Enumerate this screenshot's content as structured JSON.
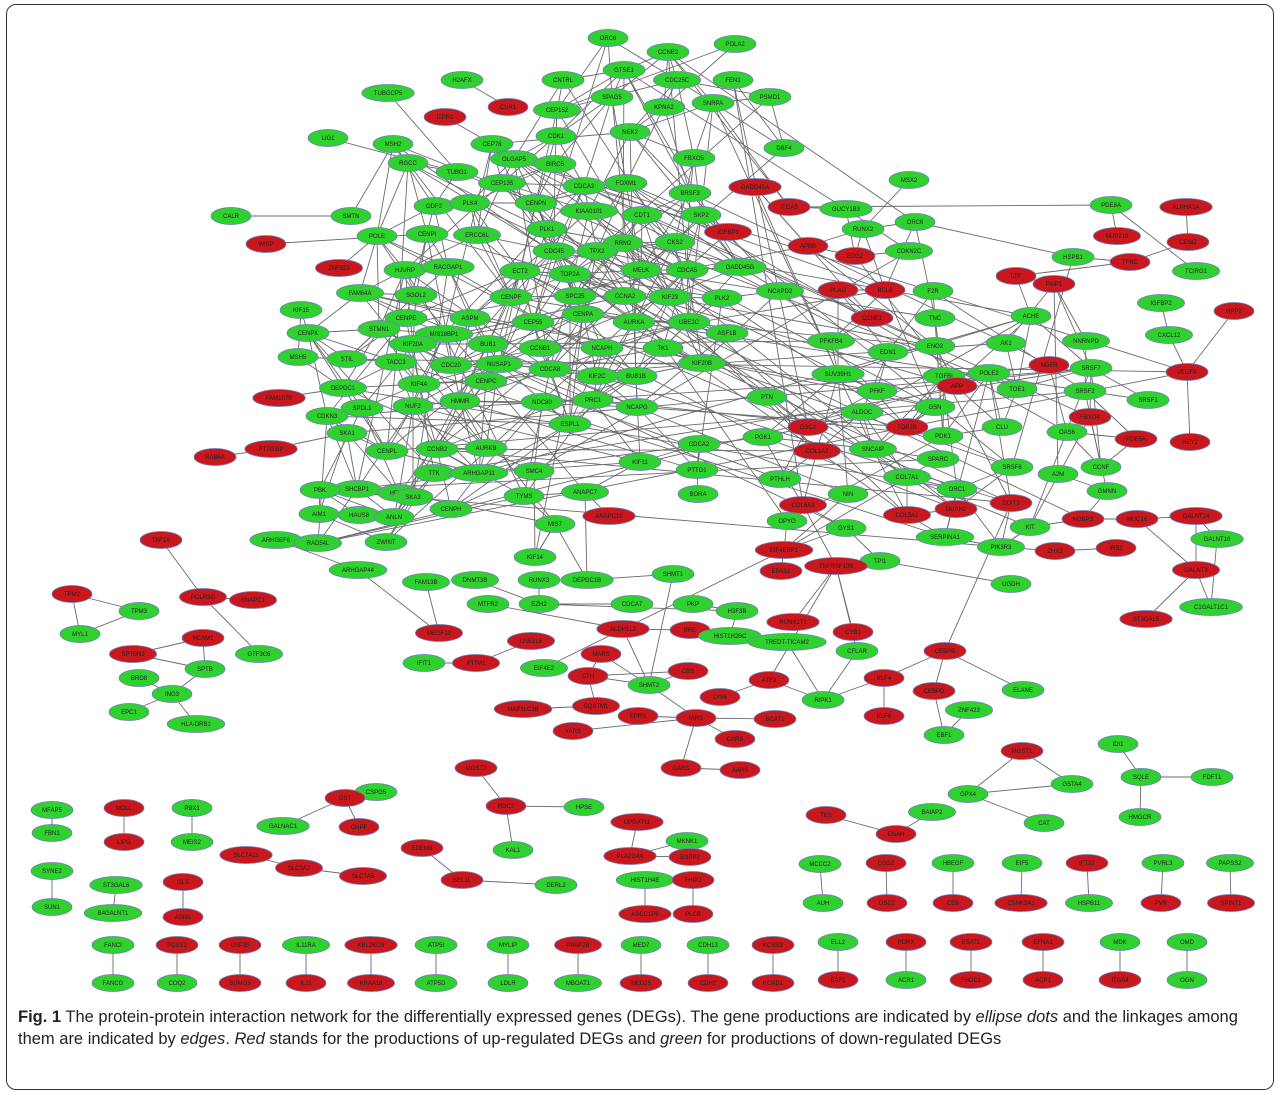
{
  "colors": {
    "up": "#c8181e",
    "down": "#2fd12f",
    "edge": "#6b6b6b"
  },
  "caption": {
    "label": "Fig. 1",
    "part1": "The protein-protein interaction network for the differentially expressed genes (DEGs). The gene productions are indicated by ",
    "em1": "ellipse dots",
    "part2": " and the linkages among them are indicated by ",
    "em2": "edges",
    "part3": ". ",
    "em3": "Red",
    "part4": " stands for the productions of up-regulated DEGs and ",
    "em4": "green",
    "part5": " for productions of down-regulated DEGs"
  },
  "nodes": [
    {
      "id": "ORC6",
      "c": "g"
    },
    {
      "id": "CCNE2",
      "c": "g"
    },
    {
      "id": "POLA2",
      "c": "g"
    },
    {
      "id": "H2AFX",
      "c": "g"
    },
    {
      "id": "CNTRL",
      "c": "g"
    },
    {
      "id": "GTSE1",
      "c": "g"
    },
    {
      "id": "CDC25C",
      "c": "g"
    },
    {
      "id": "FEN1",
      "c": "g"
    },
    {
      "id": "TUBGCP5",
      "c": "g"
    },
    {
      "id": "CUR1",
      "c": "r"
    },
    {
      "id": "SPAG5",
      "c": "g"
    },
    {
      "id": "CEP152",
      "c": "g"
    },
    {
      "id": "KPNA2",
      "c": "g"
    },
    {
      "id": "SNRPA",
      "c": "g"
    },
    {
      "id": "PSMD1",
      "c": "g"
    },
    {
      "id": "ITPR1",
      "c": "r"
    },
    {
      "id": "CDK1",
      "c": "g"
    },
    {
      "id": "NEK2",
      "c": "g"
    },
    {
      "id": "LIG1",
      "c": "g"
    },
    {
      "id": "MSH2",
      "c": "g"
    },
    {
      "id": "RGCC",
      "c": "g"
    },
    {
      "id": "CEP78",
      "c": "g"
    },
    {
      "id": "OLGAP5",
      "c": "g"
    },
    {
      "id": "BIRC5",
      "c": "g"
    },
    {
      "id": "FBXO5",
      "c": "g"
    },
    {
      "id": "DBF4",
      "c": "g"
    },
    {
      "id": "TUBG1",
      "c": "g"
    },
    {
      "id": "CEP135",
      "c": "g"
    },
    {
      "id": "CDCA3",
      "c": "g"
    },
    {
      "id": "FOXM1",
      "c": "g"
    },
    {
      "id": "MSX2",
      "c": "g"
    },
    {
      "id": "CALR",
      "c": "g"
    },
    {
      "id": "SMTN",
      "c": "g"
    },
    {
      "id": "ODF2",
      "c": "g"
    },
    {
      "id": "PLK4",
      "c": "g"
    },
    {
      "id": "CENPN",
      "c": "g"
    },
    {
      "id": "KIAA0101",
      "c": "g"
    },
    {
      "id": "BRSF3",
      "c": "g"
    },
    {
      "id": "GADD45A",
      "c": "r"
    },
    {
      "id": "CDT1",
      "c": "g"
    },
    {
      "id": "SKP2",
      "c": "g"
    },
    {
      "id": "ITGA5",
      "c": "r"
    },
    {
      "id": "GUCY1B3",
      "c": "g"
    },
    {
      "id": "PDE8A",
      "c": "g"
    },
    {
      "id": "ALPHA1A",
      "c": "r"
    },
    {
      "id": "WISP",
      "c": "r"
    },
    {
      "id": "POLE",
      "c": "g"
    },
    {
      "id": "CENPI",
      "c": "g"
    },
    {
      "id": "ERCC6L",
      "c": "g"
    },
    {
      "id": "PLK1",
      "c": "g"
    },
    {
      "id": "RRM2",
      "c": "g"
    },
    {
      "id": "CKS2",
      "c": "g"
    },
    {
      "id": "IGFBP3",
      "c": "r"
    },
    {
      "id": "RUNX2",
      "c": "g"
    },
    {
      "id": "ORC6b",
      "c": "g"
    },
    {
      "id": "NUP210",
      "c": "r"
    },
    {
      "id": "CENIZ",
      "c": "r"
    },
    {
      "id": "ZNF823",
      "c": "r"
    },
    {
      "id": "CDC45",
      "c": "g"
    },
    {
      "id": "TPX2",
      "c": "g"
    },
    {
      "id": "APBB",
      "c": "r"
    },
    {
      "id": "EDG2",
      "c": "r"
    },
    {
      "id": "CDKN2C",
      "c": "g"
    },
    {
      "id": "HSPB1",
      "c": "g"
    },
    {
      "id": "TFRC",
      "c": "r"
    },
    {
      "id": "TCIRG1",
      "c": "g"
    },
    {
      "id": "HJURP",
      "c": "g"
    },
    {
      "id": "RACGAP1",
      "c": "g"
    },
    {
      "id": "ECT2",
      "c": "g"
    },
    {
      "id": "TOP2A",
      "c": "g"
    },
    {
      "id": "MELK",
      "c": "g"
    },
    {
      "id": "CDCA5",
      "c": "g"
    },
    {
      "id": "GADD45G",
      "c": "g"
    },
    {
      "id": "PLAU",
      "c": "r"
    },
    {
      "id": "BCL6",
      "c": "r"
    },
    {
      "id": "F2R",
      "c": "g"
    },
    {
      "id": "LTF",
      "c": "r"
    },
    {
      "id": "PAIP1",
      "c": "r"
    },
    {
      "id": "FAM64A",
      "c": "g"
    },
    {
      "id": "SGOL2",
      "c": "g"
    },
    {
      "id": "CENPF",
      "c": "g"
    },
    {
      "id": "SPC25",
      "c": "g"
    },
    {
      "id": "CCNA2",
      "c": "g"
    },
    {
      "id": "KIF23",
      "c": "g"
    },
    {
      "id": "PLK2",
      "c": "g"
    },
    {
      "id": "NCAPD2",
      "c": "g"
    },
    {
      "id": "CCNE1",
      "c": "r"
    },
    {
      "id": "TNC",
      "c": "g"
    },
    {
      "id": "ACHE",
      "c": "g"
    },
    {
      "id": "IGFBP2",
      "c": "g"
    },
    {
      "id": "HPP2",
      "c": "r"
    },
    {
      "id": "KIF15",
      "c": "g"
    },
    {
      "id": "CENPE",
      "c": "g"
    },
    {
      "id": "ASPM",
      "c": "g"
    },
    {
      "id": "CENPA",
      "c": "g"
    },
    {
      "id": "AURKA",
      "c": "g"
    },
    {
      "id": "UBE2C",
      "c": "g"
    },
    {
      "id": "ASF1B",
      "c": "g"
    },
    {
      "id": "CENPK",
      "c": "g"
    },
    {
      "id": "STMN1",
      "c": "g"
    },
    {
      "id": "MIS18BP1",
      "c": "g"
    },
    {
      "id": "CEP55",
      "c": "g"
    },
    {
      "id": "PFKFB4",
      "c": "g"
    },
    {
      "id": "CXCL12",
      "c": "g"
    },
    {
      "id": "MSH5",
      "c": "g"
    },
    {
      "id": "KIF20A",
      "c": "g"
    },
    {
      "id": "BUB1",
      "c": "g"
    },
    {
      "id": "CCNB1",
      "c": "g"
    },
    {
      "id": "NCAPH",
      "c": "g"
    },
    {
      "id": "TK1",
      "c": "g"
    },
    {
      "id": "KIF20B",
      "c": "g"
    },
    {
      "id": "EDN1",
      "c": "g"
    },
    {
      "id": "ENO2",
      "c": "g"
    },
    {
      "id": "AK1",
      "c": "g"
    },
    {
      "id": "NNRNPD",
      "c": "g"
    },
    {
      "id": "STIL",
      "c": "g"
    },
    {
      "id": "TACC3",
      "c": "g"
    },
    {
      "id": "CDC20",
      "c": "g"
    },
    {
      "id": "NUSAP1",
      "c": "g"
    },
    {
      "id": "SUV39H1",
      "c": "g"
    },
    {
      "id": "TGFBI",
      "c": "g"
    },
    {
      "id": "POLE2",
      "c": "g"
    },
    {
      "id": "NGFR",
      "c": "r"
    },
    {
      "id": "SRSF7",
      "c": "g"
    },
    {
      "id": "VEGFA",
      "c": "r"
    },
    {
      "id": "DEPDC1",
      "c": "g"
    },
    {
      "id": "CDCA8",
      "c": "g"
    },
    {
      "id": "BUB1B",
      "c": "g"
    },
    {
      "id": "PFKF",
      "c": "g"
    },
    {
      "id": "APP",
      "c": "r"
    },
    {
      "id": "TOE1",
      "c": "g"
    },
    {
      "id": "SRSF2",
      "c": "g"
    },
    {
      "id": "FAM107B",
      "c": "r"
    },
    {
      "id": "KIF4A",
      "c": "g"
    },
    {
      "id": "CENPC",
      "c": "g"
    },
    {
      "id": "PTN",
      "c": "g"
    },
    {
      "id": "ALDOC",
      "c": "g"
    },
    {
      "id": "GSN",
      "c": "g"
    },
    {
      "id": "FBXO4",
      "c": "r"
    },
    {
      "id": "SRSF1",
      "c": "g"
    },
    {
      "id": "SPDL1",
      "c": "g"
    },
    {
      "id": "NUF2",
      "c": "g"
    },
    {
      "id": "HMMR",
      "c": "g"
    },
    {
      "id": "NDC80",
      "c": "g"
    },
    {
      "id": "PRC1",
      "c": "g"
    },
    {
      "id": "NCAPG",
      "c": "g"
    },
    {
      "id": "TOP2B",
      "c": "r"
    },
    {
      "id": "CDKN3",
      "c": "g"
    },
    {
      "id": "KIF2C",
      "c": "g"
    },
    {
      "id": "ESPL1",
      "c": "g"
    },
    {
      "id": "DSC2b",
      "c": "r"
    },
    {
      "id": "PDK1",
      "c": "g"
    },
    {
      "id": "CLU",
      "c": "g"
    },
    {
      "id": "OAS6",
      "c": "g"
    },
    {
      "id": "PDE5A",
      "c": "r"
    },
    {
      "id": "HEY2",
      "c": "r"
    },
    {
      "id": "PTTG1IP",
      "c": "r"
    },
    {
      "id": "SKA1",
      "c": "g"
    },
    {
      "id": "CENPL",
      "c": "g"
    },
    {
      "id": "CCNB2",
      "c": "g"
    },
    {
      "id": "AURKB",
      "c": "g"
    },
    {
      "id": "CDCA2",
      "c": "g"
    },
    {
      "id": "PGK1",
      "c": "g"
    },
    {
      "id": "COL1A2",
      "c": "r"
    },
    {
      "id": "SNCAIP",
      "c": "g"
    },
    {
      "id": "SPARC",
      "c": "g"
    },
    {
      "id": "CCNF",
      "c": "g"
    },
    {
      "id": "RAB6A",
      "c": "r"
    },
    {
      "id": "TTK",
      "c": "g"
    },
    {
      "id": "ARHGAP11",
      "c": "g"
    },
    {
      "id": "SMC4",
      "c": "g"
    },
    {
      "id": "KIF11",
      "c": "g"
    },
    {
      "id": "PTTG1",
      "c": "g"
    },
    {
      "id": "COL7A1",
      "c": "g"
    },
    {
      "id": "SRSF6",
      "c": "g"
    },
    {
      "id": "A2M",
      "c": "g"
    },
    {
      "id": "GMNN",
      "c": "g"
    },
    {
      "id": "SHCBP1",
      "c": "g"
    },
    {
      "id": "HELLS",
      "c": "g"
    },
    {
      "id": "TYMS",
      "c": "g"
    },
    {
      "id": "ANAPC7",
      "c": "g"
    },
    {
      "id": "BORA",
      "c": "g"
    },
    {
      "id": "PTHLH",
      "c": "g"
    },
    {
      "id": "NIN",
      "c": "g"
    },
    {
      "id": "ORC1",
      "c": "g"
    },
    {
      "id": "PBK",
      "c": "g"
    },
    {
      "id": "HAUS8",
      "c": "g"
    },
    {
      "id": "CENPH",
      "c": "g"
    },
    {
      "id": "MIS7",
      "c": "g"
    },
    {
      "id": "ANAPC10",
      "c": "r"
    },
    {
      "id": "COL6A3",
      "c": "r"
    },
    {
      "id": "COL5A1",
      "c": "r"
    },
    {
      "id": "DUAH2",
      "c": "r"
    },
    {
      "id": "DDIT3",
      "c": "r"
    },
    {
      "id": "AIM1",
      "c": "g"
    },
    {
      "id": "ANLN",
      "c": "g"
    },
    {
      "id": "SKA3",
      "c": "g"
    },
    {
      "id": "GALNT14",
      "c": "r"
    },
    {
      "id": "OPYO",
      "c": "g"
    },
    {
      "id": "GYS1",
      "c": "g"
    },
    {
      "id": "SERPINA1",
      "c": "g"
    },
    {
      "id": "NOBPS",
      "c": "r"
    },
    {
      "id": "MUC16",
      "c": "r"
    },
    {
      "id": "ARHGEF6",
      "c": "g"
    },
    {
      "id": "RAD54L",
      "c": "g"
    },
    {
      "id": "ZWINT",
      "c": "g"
    },
    {
      "id": "KIF14",
      "c": "g"
    },
    {
      "id": "KIT",
      "c": "g"
    },
    {
      "id": "GALNT10",
      "c": "g"
    },
    {
      "id": "TAF1A",
      "c": "r"
    },
    {
      "id": "RUNX3",
      "c": "g"
    },
    {
      "id": "DEPDC1B",
      "c": "g"
    },
    {
      "id": "SHMT1",
      "c": "g"
    },
    {
      "id": "TPI1",
      "c": "g"
    },
    {
      "id": "PIK3R3",
      "c": "g"
    },
    {
      "id": "ZHX2",
      "c": "r"
    },
    {
      "id": "IRS2",
      "c": "r"
    },
    {
      "id": "GALNT3",
      "c": "r"
    },
    {
      "id": "ARHGAP44",
      "c": "g"
    },
    {
      "id": "FAM13B",
      "c": "g"
    },
    {
      "id": "DNMT3B",
      "c": "g"
    },
    {
      "id": "EIF4EBP1",
      "c": "r"
    },
    {
      "id": "TNFRSF10B",
      "c": "r"
    },
    {
      "id": "UGDH",
      "c": "g"
    },
    {
      "id": "TPM2",
      "c": "r"
    },
    {
      "id": "TPM3",
      "c": "g"
    },
    {
      "id": "POLR3G",
      "c": "r"
    },
    {
      "id": "SNAPC1",
      "c": "r"
    },
    {
      "id": "MTFR2",
      "c": "g"
    },
    {
      "id": "EZH2",
      "c": "g"
    },
    {
      "id": "CDCA7",
      "c": "g"
    },
    {
      "id": "PKP",
      "c": "g"
    },
    {
      "id": "EPAS1",
      "c": "r"
    },
    {
      "id": "C1GALT1C1",
      "c": "g"
    },
    {
      "id": "ST3GAL5",
      "c": "r"
    },
    {
      "id": "MYL1",
      "c": "g"
    },
    {
      "id": "NCAM1",
      "c": "r"
    },
    {
      "id": "H3F3B",
      "c": "g"
    },
    {
      "id": "RUNX1T1",
      "c": "r"
    },
    {
      "id": "CYB1",
      "c": "r"
    },
    {
      "id": "SPTBN2",
      "c": "r"
    },
    {
      "id": "GTF3C6",
      "c": "g"
    },
    {
      "id": "MEGF10",
      "c": "r"
    },
    {
      "id": "ALDH1L2",
      "c": "r"
    },
    {
      "id": "BRE",
      "c": "r"
    },
    {
      "id": "HIST1H2BC",
      "c": "g"
    },
    {
      "id": "TREDT-TICAM2",
      "c": "g"
    },
    {
      "id": "CFLAR",
      "c": "g"
    },
    {
      "id": "SPTB",
      "c": "g"
    },
    {
      "id": "USE2L6",
      "c": "r"
    },
    {
      "id": "IFIT1",
      "c": "g"
    },
    {
      "id": "IFITM1",
      "c": "r"
    },
    {
      "id": "EIF4E2",
      "c": "g"
    },
    {
      "id": "MARS",
      "c": "r"
    },
    {
      "id": "SHMT2",
      "c": "g"
    },
    {
      "id": "CBS",
      "c": "r"
    },
    {
      "id": "ATF3",
      "c": "r"
    },
    {
      "id": "CEBPB",
      "c": "r"
    },
    {
      "id": "BRD8",
      "c": "g"
    },
    {
      "id": "CTH",
      "c": "r"
    },
    {
      "id": "LY96",
      "c": "r"
    },
    {
      "id": "KLF4",
      "c": "r"
    },
    {
      "id": "ING3",
      "c": "g"
    },
    {
      "id": "MAP1LC3B",
      "c": "r"
    },
    {
      "id": "SQSTM1",
      "c": "r"
    },
    {
      "id": "EPRS",
      "c": "r"
    },
    {
      "id": "IARS",
      "c": "r"
    },
    {
      "id": "BCAT1",
      "c": "r"
    },
    {
      "id": "RIPK1",
      "c": "g"
    },
    {
      "id": "CEBPD",
      "c": "r"
    },
    {
      "id": "ZNF423",
      "c": "g"
    },
    {
      "id": "ELANE",
      "c": "g"
    },
    {
      "id": "EPC1",
      "c": "g"
    },
    {
      "id": "HLA-DRB1",
      "c": "g"
    },
    {
      "id": "YARS",
      "c": "r"
    },
    {
      "id": "CARS",
      "c": "r"
    },
    {
      "id": "KLF6",
      "c": "r"
    },
    {
      "id": "EBF1",
      "c": "g"
    },
    {
      "id": "GARS",
      "c": "r"
    },
    {
      "id": "AARS",
      "c": "r"
    },
    {
      "id": "MGST1",
      "c": "r"
    },
    {
      "id": "IDI1",
      "c": "g"
    },
    {
      "id": "CSPG5",
      "c": "g"
    },
    {
      "id": "MGST2",
      "c": "r"
    },
    {
      "id": "GPX4",
      "c": "g"
    },
    {
      "id": "GSTA4",
      "c": "g"
    },
    {
      "id": "SQLE",
      "c": "g"
    },
    {
      "id": "FDFT1",
      "c": "g"
    },
    {
      "id": "GST",
      "c": "r"
    },
    {
      "id": "RDC2",
      "c": "r"
    },
    {
      "id": "HPSE",
      "c": "g"
    },
    {
      "id": "UPGAT11",
      "c": "r"
    },
    {
      "id": "MKNK1",
      "c": "g"
    },
    {
      "id": "MFAP5",
      "c": "g"
    },
    {
      "id": "MOLL",
      "c": "r"
    },
    {
      "id": "PBX1",
      "c": "g"
    },
    {
      "id": "TES",
      "c": "r"
    },
    {
      "id": "BAIAP2",
      "c": "g"
    },
    {
      "id": "HMGCR",
      "c": "g"
    },
    {
      "id": "GALNAC1",
      "c": "g"
    },
    {
      "id": "CHPF",
      "c": "r"
    },
    {
      "id": "PLA2G4A",
      "c": "r"
    },
    {
      "id": "ENPP2",
      "c": "r"
    },
    {
      "id": "ENAH",
      "c": "r"
    },
    {
      "id": "CAT",
      "c": "g"
    },
    {
      "id": "FBN1",
      "c": "g"
    },
    {
      "id": "LIPG",
      "c": "r"
    },
    {
      "id": "MEIS2",
      "c": "g"
    },
    {
      "id": "KAL1",
      "c": "g"
    },
    {
      "id": "SLC7A11",
      "c": "r"
    },
    {
      "id": "SLC3A2",
      "c": "r"
    },
    {
      "id": "SLC7A5",
      "c": "r"
    },
    {
      "id": "EDEM3",
      "c": "r"
    },
    {
      "id": "SEL1L",
      "c": "r"
    },
    {
      "id": "DERL2",
      "c": "g"
    },
    {
      "id": "MCCC2",
      "c": "g"
    },
    {
      "id": "DSG2",
      "c": "r"
    },
    {
      "id": "HBEGF",
      "c": "g"
    },
    {
      "id": "EIF5",
      "c": "g"
    },
    {
      "id": "IFT22",
      "c": "r"
    },
    {
      "id": "PVRL3",
      "c": "g"
    },
    {
      "id": "PAPSS2",
      "c": "g"
    },
    {
      "id": "SYNE2",
      "c": "g"
    },
    {
      "id": "ST3GAL6",
      "c": "g"
    },
    {
      "id": "GLS",
      "c": "r"
    },
    {
      "id": "HIST1H4E",
      "c": "g"
    },
    {
      "id": "FHIP2",
      "c": "r"
    },
    {
      "id": "SUN1",
      "c": "g"
    },
    {
      "id": "B4GALNT1",
      "c": "g"
    },
    {
      "id": "ASNS",
      "c": "r"
    },
    {
      "id": "ASCC1P8",
      "c": "r"
    },
    {
      "id": "PLCB",
      "c": "r"
    },
    {
      "id": "AUH",
      "c": "g"
    },
    {
      "id": "DSC2",
      "c": "r"
    },
    {
      "id": "CD9",
      "c": "r"
    },
    {
      "id": "CSNK2A1",
      "c": "r"
    },
    {
      "id": "HSPB11",
      "c": "g"
    },
    {
      "id": "PVR",
      "c": "r"
    },
    {
      "id": "SPINT1",
      "c": "r"
    },
    {
      "id": "FANCI",
      "c": "g"
    },
    {
      "id": "PDSS2",
      "c": "r"
    },
    {
      "id": "USP35",
      "c": "r"
    },
    {
      "id": "IL11RA",
      "c": "g"
    },
    {
      "id": "KBL2KO3",
      "c": "r"
    },
    {
      "id": "ATP5I",
      "c": "g"
    },
    {
      "id": "MYLIP",
      "c": "g"
    },
    {
      "id": "PPAP2B",
      "c": "r"
    },
    {
      "id": "MED7",
      "c": "g"
    },
    {
      "id": "CDH13",
      "c": "g"
    },
    {
      "id": "KCNS3",
      "c": "r"
    },
    {
      "id": "ELL2",
      "c": "g"
    },
    {
      "id": "PDRX",
      "c": "r"
    },
    {
      "id": "ESAT1",
      "c": "r"
    },
    {
      "id": "EFNA1",
      "c": "r"
    },
    {
      "id": "MDK",
      "c": "g"
    },
    {
      "id": "OMD",
      "c": "g"
    },
    {
      "id": "FANCG",
      "c": "g"
    },
    {
      "id": "COQ2",
      "c": "g"
    },
    {
      "id": "SUMO3",
      "c": "r"
    },
    {
      "id": "IL11",
      "c": "r"
    },
    {
      "id": "KRAA18",
      "c": "r"
    },
    {
      "id": "ATP5D",
      "c": "g"
    },
    {
      "id": "LDLR",
      "c": "g"
    },
    {
      "id": "MBOAT1",
      "c": "g"
    },
    {
      "id": "MED25",
      "c": "r"
    },
    {
      "id": "CDH2",
      "c": "r"
    },
    {
      "id": "KCND1",
      "c": "r"
    },
    {
      "id": "EAF1",
      "c": "r"
    },
    {
      "id": "ACR1",
      "c": "g"
    },
    {
      "id": "FHOD1",
      "c": "r"
    },
    {
      "id": "ACP1",
      "c": "r"
    },
    {
      "id": "ITGA4",
      "c": "r"
    },
    {
      "id": "OGN",
      "c": "g"
    }
  ]
}
